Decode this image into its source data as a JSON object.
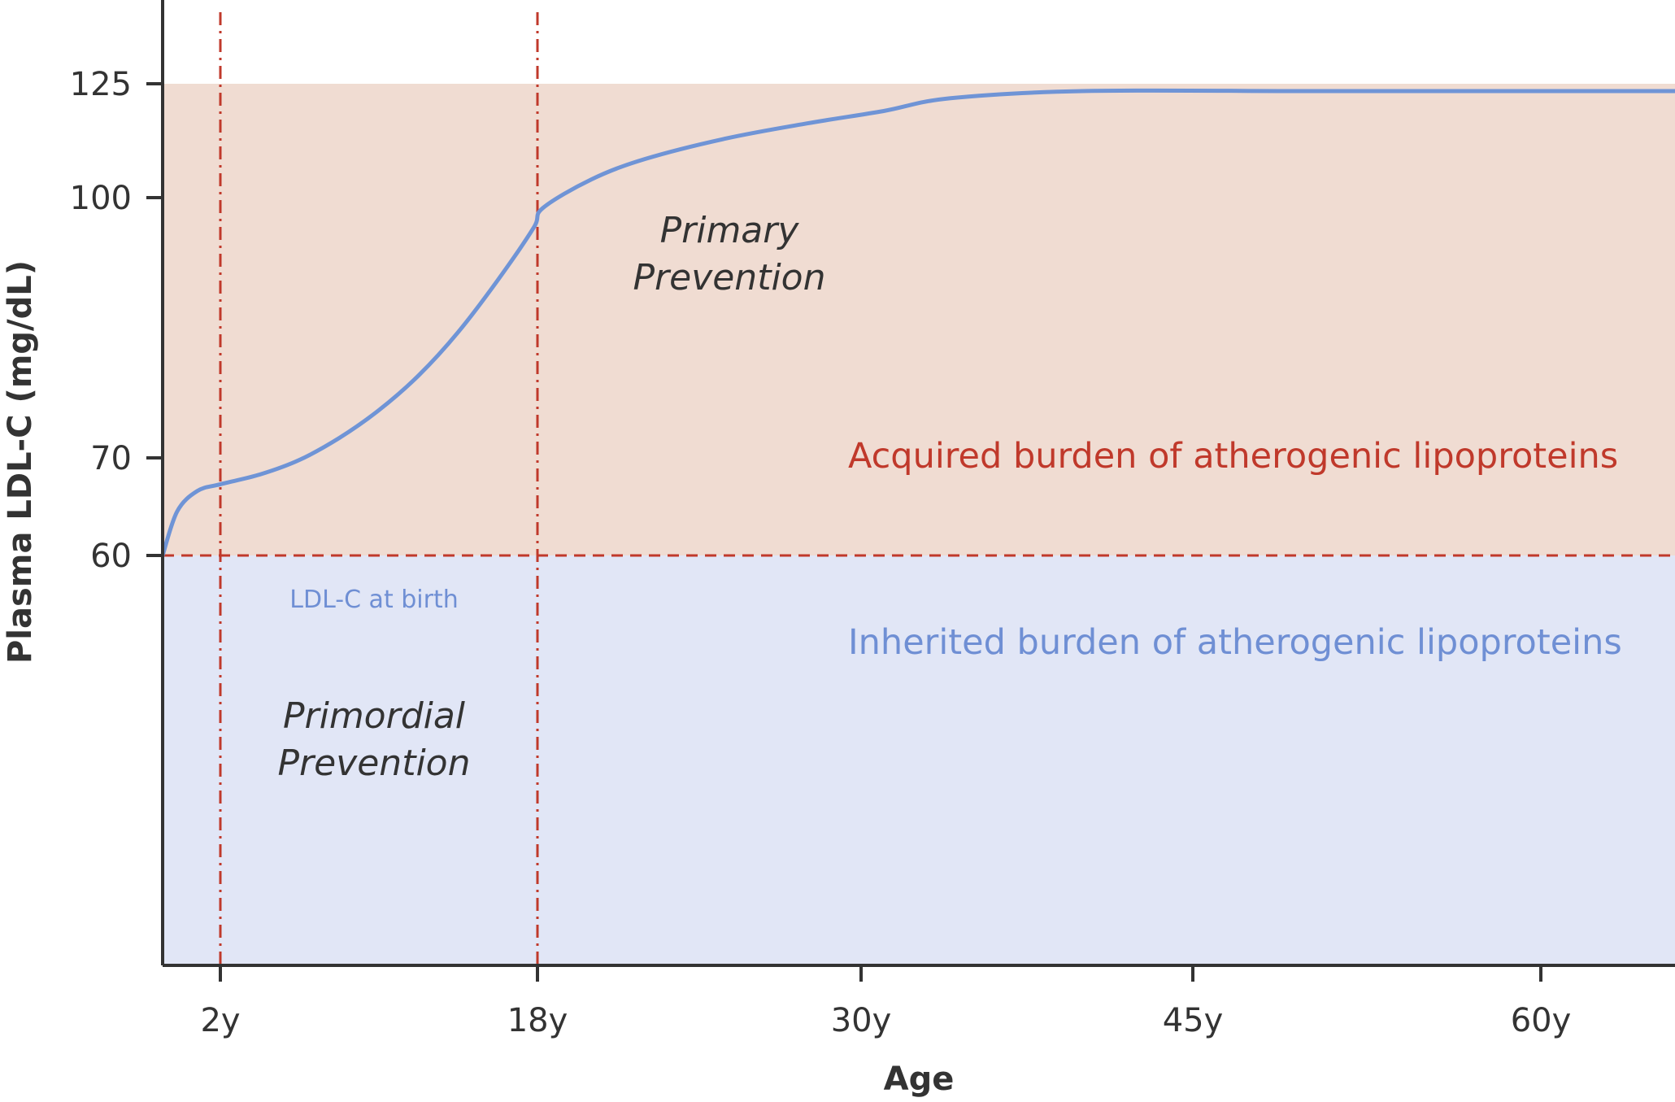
{
  "colors": {
    "acquired_fill": "#f0dcd2",
    "inherited_fill": "#e1e6f6",
    "curve": "#6f94d6",
    "divider": "#c0392b",
    "axis": "#333333",
    "acquired_text": "#c0392b",
    "inherited_text": "#6f8fd4"
  },
  "chart_data": {
    "type": "line",
    "xlabel": "Age",
    "ylabel": "Plasma LDL-C (mg/dL)",
    "x_ticks": [
      {
        "value": 2,
        "label": "2y"
      },
      {
        "value": 18,
        "label": "18y"
      },
      {
        "value": 30,
        "label": "30y"
      },
      {
        "value": 45,
        "label": "45y"
      },
      {
        "value": 60,
        "label": "60y"
      }
    ],
    "y_ticks": [
      {
        "value": 60,
        "label": "60"
      },
      {
        "value": 70,
        "label": "70"
      },
      {
        "value": 100,
        "label": "100"
      },
      {
        "value": 125,
        "label": "125"
      }
    ],
    "series": [
      {
        "x": [
          0,
          0.5,
          1.2,
          2,
          4,
          6,
          8,
          10,
          12,
          14,
          16,
          17.8,
          18.2,
          20,
          22,
          25,
          28,
          31,
          34,
          40,
          50,
          60,
          66
        ],
        "y": [
          60,
          64.5,
          66.6,
          67.3,
          68.3,
          69.8,
          72.3,
          75.5,
          79.5,
          84.5,
          90.5,
          96.5,
          98.8,
          104,
          108.5,
          113,
          116.3,
          119,
          121.8,
          123.4,
          123.4,
          123.4,
          123.4
        ]
      }
    ],
    "reference_lines": [
      {
        "axis": "y",
        "value": 60,
        "style": "dashed"
      },
      {
        "axis": "x",
        "value": 2,
        "style": "dash-dot"
      },
      {
        "axis": "x",
        "value": 18,
        "style": "dash-dot"
      }
    ],
    "shaded_regions": [
      {
        "name": "Acquired burden of atherogenic lipoproteins",
        "y_range": [
          60,
          125
        ]
      },
      {
        "name": "Inherited burden of atherogenic lipoproteins",
        "y_range": [
          0,
          60
        ]
      }
    ],
    "annotations": {
      "primary": [
        "Primary",
        "Prevention"
      ],
      "primordial": [
        "Primordial",
        "Prevention"
      ],
      "birth": "LDL-C at birth",
      "acquired": "Acquired burden of atherogenic lipoproteins",
      "inherited": "Inherited burden of atherogenic lipoproteins"
    },
    "grid": false
  }
}
